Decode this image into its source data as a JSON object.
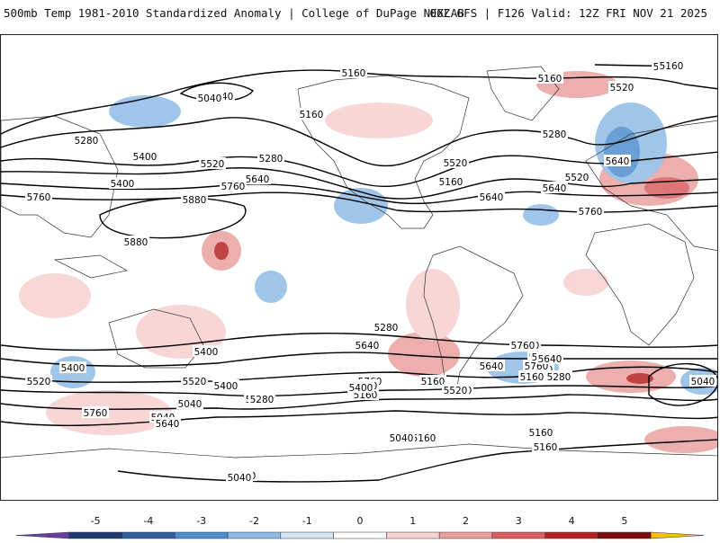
{
  "header": {
    "product": "500mb Temp 1981-2010 Standardized Anomaly | College of DuPage NEXLAB",
    "run_info": "06Z GFS | F126 Valid: 12Z FRI NOV 21 2025"
  },
  "colorbar": {
    "ticks": [
      "-5",
      "-4",
      "-3",
      "-2",
      "-1",
      "0",
      "1",
      "2",
      "3",
      "4",
      "5"
    ],
    "colors": [
      "#6b3fa0",
      "#1f3a6e",
      "#2f5f9e",
      "#4f8fd0",
      "#8fbbe6",
      "#d4e6f6",
      "#ffffff",
      "#f7d0d0",
      "#eba0a0",
      "#d86060",
      "#b52424",
      "#7a0d0d",
      "#f5c400"
    ]
  },
  "map": {
    "ocean_color": "#ffffff",
    "contour_labels": [
      "5160",
      "5040",
      "5280",
      "5160",
      "5040",
      "5160",
      "5400",
      "5520",
      "5640",
      "5760",
      "5280",
      "5400",
      "5520",
      "5640",
      "5160",
      "5280",
      "5520",
      "5640",
      "5760",
      "5880",
      "5880",
      "5760",
      "5640",
      "5520",
      "5400",
      "5280",
      "5160",
      "5040",
      "5040",
      "5040",
      "5160",
      "5160",
      "5280",
      "5400",
      "5520",
      "5640",
      "5760",
      "5760",
      "5640",
      "5400",
      "5280",
      "5160",
      "5760",
      "5640",
      "5400",
      "5520",
      "5280",
      "5400",
      "5760",
      "5520",
      "5640",
      "5760",
      "5640",
      "5280",
      "5160",
      "5520",
      "5400",
      "5640",
      "5040",
      "5160",
      "5040",
      "5160",
      "5040"
    ]
  }
}
